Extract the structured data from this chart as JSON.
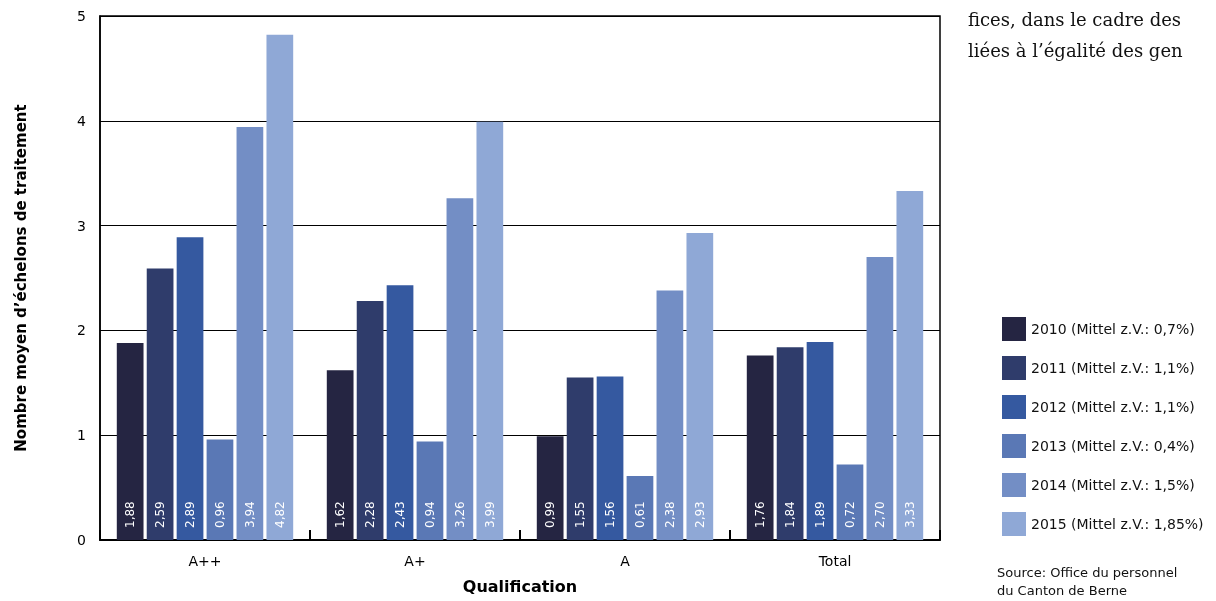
{
  "chart_data": {
    "type": "bar",
    "xlabel": "Qualification",
    "ylabel": "Nombre moyen d’échelons de traitement",
    "categories": [
      "A++",
      "A+",
      "A",
      "Total"
    ],
    "series": [
      {
        "name": "2010 (Mittel z.V.: 0,7%)",
        "color": "#252542",
        "values": [
          1.88,
          1.62,
          0.99,
          1.76
        ],
        "value_labels": [
          "1,88",
          "1,62",
          "0,99",
          "1,76"
        ]
      },
      {
        "name": "2011 (Mittel z.V.: 1,1%)",
        "color": "#2f3c6b",
        "values": [
          2.59,
          2.28,
          1.55,
          1.84
        ],
        "value_labels": [
          "2,59",
          "2,28",
          "1,55",
          "1,84"
        ]
      },
      {
        "name": "2012 (Mittel z.V.: 1,1%)",
        "color": "#3559a0",
        "values": [
          2.89,
          2.43,
          1.56,
          1.89
        ],
        "value_labels": [
          "2,89",
          "2,43",
          "1,56",
          "1,89"
        ]
      },
      {
        "name": "2013 (Mittel z.V.: 0,4%)",
        "color": "#5a78b5",
        "values": [
          0.96,
          0.94,
          0.61,
          0.72
        ],
        "value_labels": [
          "0,96",
          "0,94",
          "0,61",
          "0,72"
        ]
      },
      {
        "name": "2014 (Mittel z.V.: 1,5%)",
        "color": "#738ec5",
        "values": [
          3.94,
          3.26,
          2.38,
          2.7
        ],
        "value_labels": [
          "3,94",
          "3,26",
          "2,38",
          "2,70"
        ]
      },
      {
        "name": "2015 (Mittel z.V.: 1,85%)",
        "color": "#8fa8d6",
        "values": [
          4.82,
          3.99,
          2.93,
          3.33
        ],
        "value_labels": [
          "4,82",
          "3,99",
          "2,93",
          "3,33"
        ]
      }
    ],
    "ylim": [
      0,
      5
    ],
    "yticks": [
      0,
      1,
      2,
      3,
      4,
      5
    ],
    "grid": "y",
    "legend": "right",
    "annotations": [
      "fices, dans le cadre des",
      "liées à l’égalité des gen",
      "Source: Office du personnel\ndu Canton de Berne"
    ]
  }
}
